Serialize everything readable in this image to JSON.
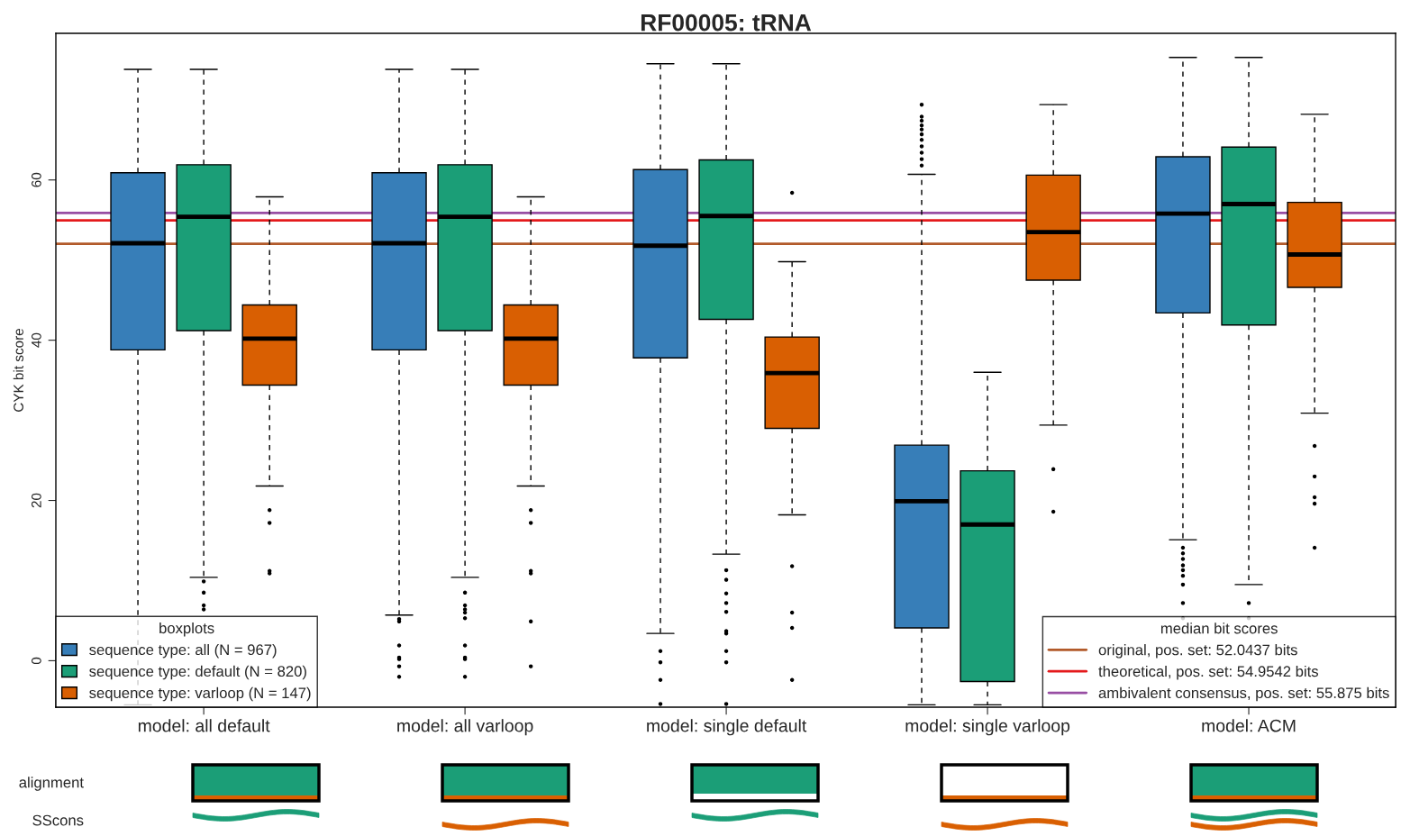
{
  "chart_data": {
    "type": "box",
    "title": "RF00005: tRNA",
    "ylabel": "CYK bit score",
    "categories": [
      "model: all default",
      "model: all varloop",
      "model: single default",
      "model: single varloop",
      "model: ACM"
    ],
    "ylim": [
      -5.8,
      78.3
    ],
    "yticks": [
      0,
      20,
      40,
      60
    ],
    "legend": "bottom left",
    "legend_title": "boxplots",
    "grid": false,
    "series": [
      {
        "name": "sequence type: all (N = 967)",
        "color": "#377eb8",
        "boxes": [
          {
            "low": -5.5,
            "q1": 38.8,
            "median": 52.1,
            "q3": 60.9,
            "high": 73.8
          },
          {
            "low": 5.7,
            "q1": 38.8,
            "median": 52.1,
            "q3": 60.9,
            "high": 73.8,
            "outliers": [
              5.2,
              4.9,
              1.9,
              0.4,
              0.2,
              -0.7,
              -2.0
            ]
          },
          {
            "low": 3.4,
            "q1": 37.8,
            "median": 51.8,
            "q3": 61.3,
            "high": 74.5,
            "outliers": [
              1.2,
              -0.2,
              -2.4,
              -5.4
            ]
          },
          {
            "low": -5.5,
            "q1": 4.1,
            "median": 19.9,
            "q3": 26.9,
            "high": 60.7,
            "outliers": [
              69.4,
              67.9,
              67.4,
              66.8,
              66.3,
              65.7,
              65.0,
              64.2,
              63.4,
              62.6,
              61.8
            ]
          },
          {
            "low": 15.1,
            "q1": 43.4,
            "median": 55.8,
            "q3": 62.9,
            "high": 75.3,
            "outliers": [
              14.1,
              13.4,
              12.7,
              11.9,
              11.3,
              10.6,
              9.5,
              7.2,
              5.3
            ]
          }
        ]
      },
      {
        "name": "sequence type: default (N = 820)",
        "color": "#1b9e77",
        "boxes": [
          {
            "low": 10.4,
            "q1": 41.2,
            "median": 55.4,
            "q3": 61.9,
            "high": 73.8,
            "outliers": [
              9.9,
              8.5,
              6.9,
              6.4
            ]
          },
          {
            "low": 10.4,
            "q1": 41.2,
            "median": 55.4,
            "q3": 61.9,
            "high": 73.8,
            "outliers": [
              8.5,
              6.9,
              6.4,
              6.0,
              5.3,
              1.9,
              0.4,
              0.2,
              -2.0
            ]
          },
          {
            "low": 13.3,
            "q1": 42.6,
            "median": 55.5,
            "q3": 62.5,
            "high": 74.5,
            "outliers": [
              11.3,
              10.1,
              8.4,
              7.2,
              6.1,
              3.7,
              3.4,
              1.2,
              -0.2,
              -5.4
            ]
          },
          {
            "low": -5.5,
            "q1": -2.6,
            "median": 17.0,
            "q3": 23.7,
            "high": 36.0
          },
          {
            "low": 9.5,
            "q1": 41.9,
            "median": 57.0,
            "q3": 64.1,
            "high": 75.3,
            "outliers": [
              7.2,
              5.3
            ]
          }
        ]
      },
      {
        "name": "sequence type: varloop (N = 147)",
        "color": "#d95f02",
        "boxes": [
          {
            "low": 21.8,
            "q1": 34.4,
            "median": 40.2,
            "q3": 44.4,
            "high": 57.9,
            "outliers": [
              18.8,
              17.2,
              11.2,
              10.9
            ]
          },
          {
            "low": 21.8,
            "q1": 34.4,
            "median": 40.2,
            "q3": 44.4,
            "high": 57.9,
            "outliers": [
              18.8,
              17.2,
              11.2,
              10.9,
              4.9,
              -0.7
            ]
          },
          {
            "low": 18.2,
            "q1": 29.0,
            "median": 35.9,
            "q3": 40.4,
            "high": 49.8,
            "outliers": [
              58.4,
              11.8,
              6.0,
              4.1,
              -2.4
            ]
          },
          {
            "low": 29.4,
            "q1": 47.5,
            "median": 53.5,
            "q3": 60.6,
            "high": 69.4,
            "outliers": [
              23.9,
              18.6
            ]
          },
          {
            "low": 30.9,
            "q1": 46.6,
            "median": 50.7,
            "q3": 57.2,
            "high": 68.2,
            "outliers": [
              26.8,
              23.0,
              20.4,
              19.6,
              14.1
            ]
          }
        ]
      }
    ],
    "ref_lines": [
      {
        "axis": "y",
        "value": 52.0437,
        "label": "original, pos. set: 52.0437 bits",
        "color": "#b25a2a"
      },
      {
        "axis": "y",
        "value": 54.9542,
        "label": "theoretical, pos. set: 54.9542 bits",
        "color": "#e41a1c"
      },
      {
        "axis": "y",
        "value": 55.875,
        "label": "ambivalent consensus, pos. set: 55.875 bits",
        "color": "#984ea3"
      }
    ],
    "annotations": [
      "median bit scores",
      "alignment",
      "SScons"
    ]
  }
}
